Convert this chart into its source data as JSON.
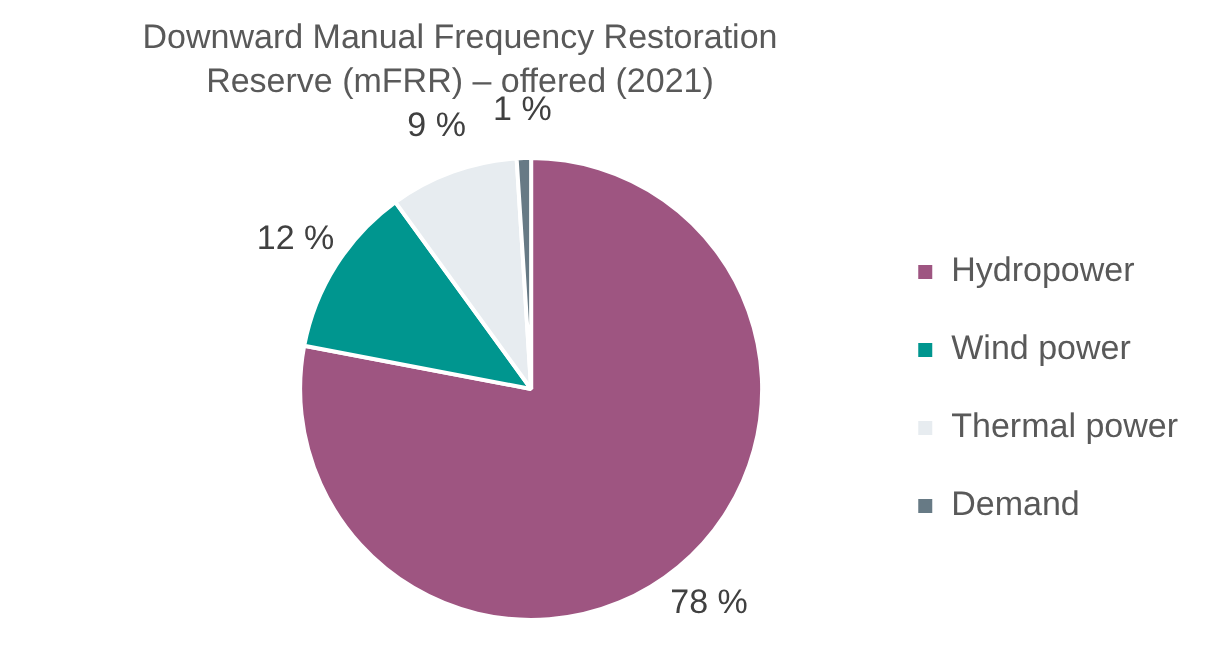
{
  "chart_data": {
    "type": "pie",
    "title": "Downward Manual Frequency Restoration Reserve (mFRR) – offered (2021)",
    "categories": [
      "Hydropower",
      "Wind power",
      "Thermal power",
      "Demand"
    ],
    "values": [
      78,
      12,
      9,
      1
    ],
    "colors": [
      "#9e5581",
      "#00968f",
      "#e7ecf0",
      "#677a85"
    ],
    "value_labels": [
      "78 %",
      "12 %",
      "9 %",
      "1 %"
    ],
    "legend": "right"
  }
}
